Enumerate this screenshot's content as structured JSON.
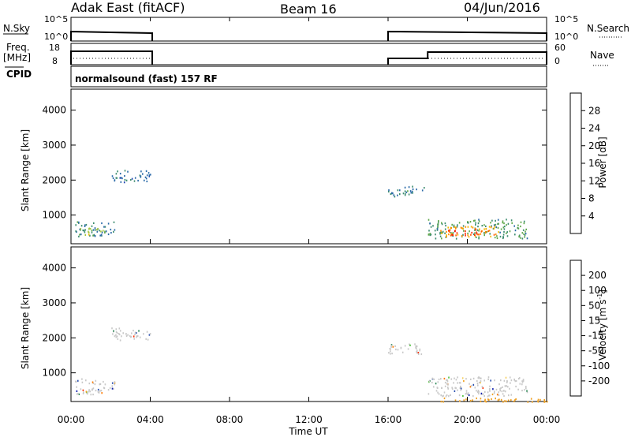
{
  "header": {
    "station": "Adak East (fitACF)",
    "beam": "Beam 16",
    "date": "04/Jun/2016"
  },
  "status": {
    "nsky_label": "N.Sky",
    "nsky_ticks": [
      "10^5",
      "10^0"
    ],
    "nsearch_label": "N.Search",
    "nsearch_ticks": [
      "10^5",
      "10^0"
    ],
    "freq_label": "Freq.",
    "freq_unit": "[MHz]",
    "freq_ticks": [
      "18",
      "8"
    ],
    "nave_label": "Nave",
    "nave_ticks": [
      "60",
      "0"
    ],
    "cpid_label": "CPID",
    "cpid_text": "normalsound (fast) 157 RF"
  },
  "panels": {
    "power_ylabel": "Slant Range [km]",
    "velocity_ylabel": "Slant Range [km]",
    "y_ticks": [
      "1000",
      "2000",
      "3000",
      "4000"
    ],
    "x_ticks": [
      "00:00",
      "04:00",
      "08:00",
      "12:00",
      "16:00",
      "20:00",
      "00:00"
    ],
    "x_label": "Time UT"
  },
  "power_scale": {
    "title": "Power [dB]",
    "ticks": [
      "4",
      "8",
      "12",
      "16",
      "20",
      "24",
      "28"
    ],
    "colors": [
      "#0000ff",
      "#1a3fb0",
      "#2a6aa8",
      "#3c8c6e",
      "#5fa84a",
      "#a5c53a",
      "#f2b800",
      "#ff8c00",
      "#ff5a00",
      "#ff2a00",
      "#e60000"
    ]
  },
  "velocity_scale": {
    "title": "Velocity [m s",
    "title_exp": "-1",
    "title_end": "]",
    "ticks": [
      "200",
      "100",
      "50",
      "15",
      "-15",
      "-50",
      "-100",
      "-200"
    ],
    "colors": [
      "#1020b0",
      "#2a50b0",
      "#2f8a5a",
      "#4ec03a",
      "#c8c8c8",
      "#f6d060",
      "#f0a020",
      "#ff7a00",
      "#ff3000"
    ]
  },
  "chart_data": {
    "type": "heatmap",
    "title": "Adak East (fitACF)",
    "subtitle": "Beam 16",
    "xlabel": "Time UT",
    "ylabel": "Slant Range [km]",
    "x_range_hours": [
      0,
      24
    ],
    "y_range_km": [
      180,
      4600
    ],
    "status": {
      "nsky_segments_hours": [
        [
          0,
          4.1
        ],
        [
          16,
          24
        ]
      ],
      "freq_segments_hours": [
        [
          0,
          4.1
        ],
        [
          16,
          24
        ]
      ],
      "freq_step_hour": 18
    },
    "power_regions": [
      {
        "t0": 0.2,
        "t1": 2.2,
        "r0": 400,
        "r1": 850,
        "level": 8
      },
      {
        "t0": 0.3,
        "t1": 1.6,
        "r0": 450,
        "r1": 650,
        "level": 14
      },
      {
        "t0": 2.0,
        "t1": 4.0,
        "r0": 1950,
        "r1": 2300,
        "level": 7
      },
      {
        "t0": 16.0,
        "t1": 17.8,
        "r0": 1550,
        "r1": 1850,
        "level": 8
      },
      {
        "t0": 18.0,
        "t1": 23.0,
        "r0": 350,
        "r1": 900,
        "level": 10
      },
      {
        "t0": 18.6,
        "t1": 21.6,
        "r0": 400,
        "r1": 700,
        "level": 20
      },
      {
        "t0": 19.0,
        "t1": 20.8,
        "r0": 420,
        "r1": 620,
        "level": 26
      }
    ],
    "velocity_regions": [
      {
        "t0": 0.2,
        "t1": 2.2,
        "r0": 400,
        "r1": 850,
        "band": "15/-15"
      },
      {
        "t0": 2.0,
        "t1": 4.0,
        "r0": 1950,
        "r1": 2300,
        "band": "15/-15"
      },
      {
        "t0": 16.0,
        "t1": 17.8,
        "r0": 1550,
        "r1": 1850,
        "band": "15/-15"
      },
      {
        "t0": 18.0,
        "t1": 23.0,
        "r0": 350,
        "r1": 900,
        "band": "15/-15"
      },
      {
        "t0": 18.5,
        "t1": 24.0,
        "r0": 180,
        "r1": 300,
        "band": "-50"
      }
    ]
  }
}
